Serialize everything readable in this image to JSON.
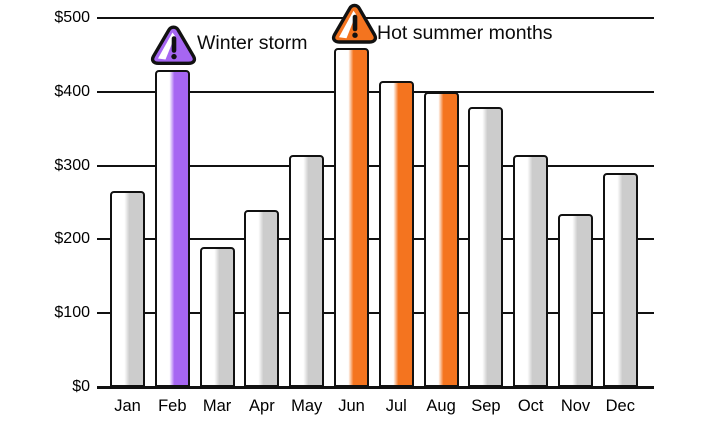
{
  "chart_data": {
    "type": "bar",
    "title": "",
    "categories": [
      "Jan",
      "Feb",
      "Mar",
      "Apr",
      "May",
      "Jun",
      "Jul",
      "Aug",
      "Sep",
      "Oct",
      "Nov",
      "Dec"
    ],
    "values": [
      265,
      430,
      190,
      240,
      315,
      460,
      415,
      400,
      380,
      315,
      235,
      290
    ],
    "bar_styles": [
      "default",
      "winter",
      "default",
      "default",
      "default",
      "summer",
      "summer",
      "summer",
      "default",
      "default",
      "default",
      "default"
    ],
    "ytick_labels": [
      "$0",
      "$100",
      "$200",
      "$300",
      "$400",
      "$500"
    ],
    "ylim": [
      0,
      500
    ],
    "grid": "horizontal",
    "legend": "none",
    "annotations": [
      {
        "text": "Winter storm",
        "icon": "warning-triangle-icon",
        "color_key": "winter",
        "target": "Feb"
      },
      {
        "text": "Hot summer months",
        "icon": "warning-triangle-icon",
        "color_key": "summer",
        "target": "Jun"
      }
    ]
  },
  "colors": {
    "default": "#cccccc",
    "winter": "#a666f2",
    "summer": "#f4741f",
    "line": "#111111",
    "highlight": "#ffffff"
  }
}
